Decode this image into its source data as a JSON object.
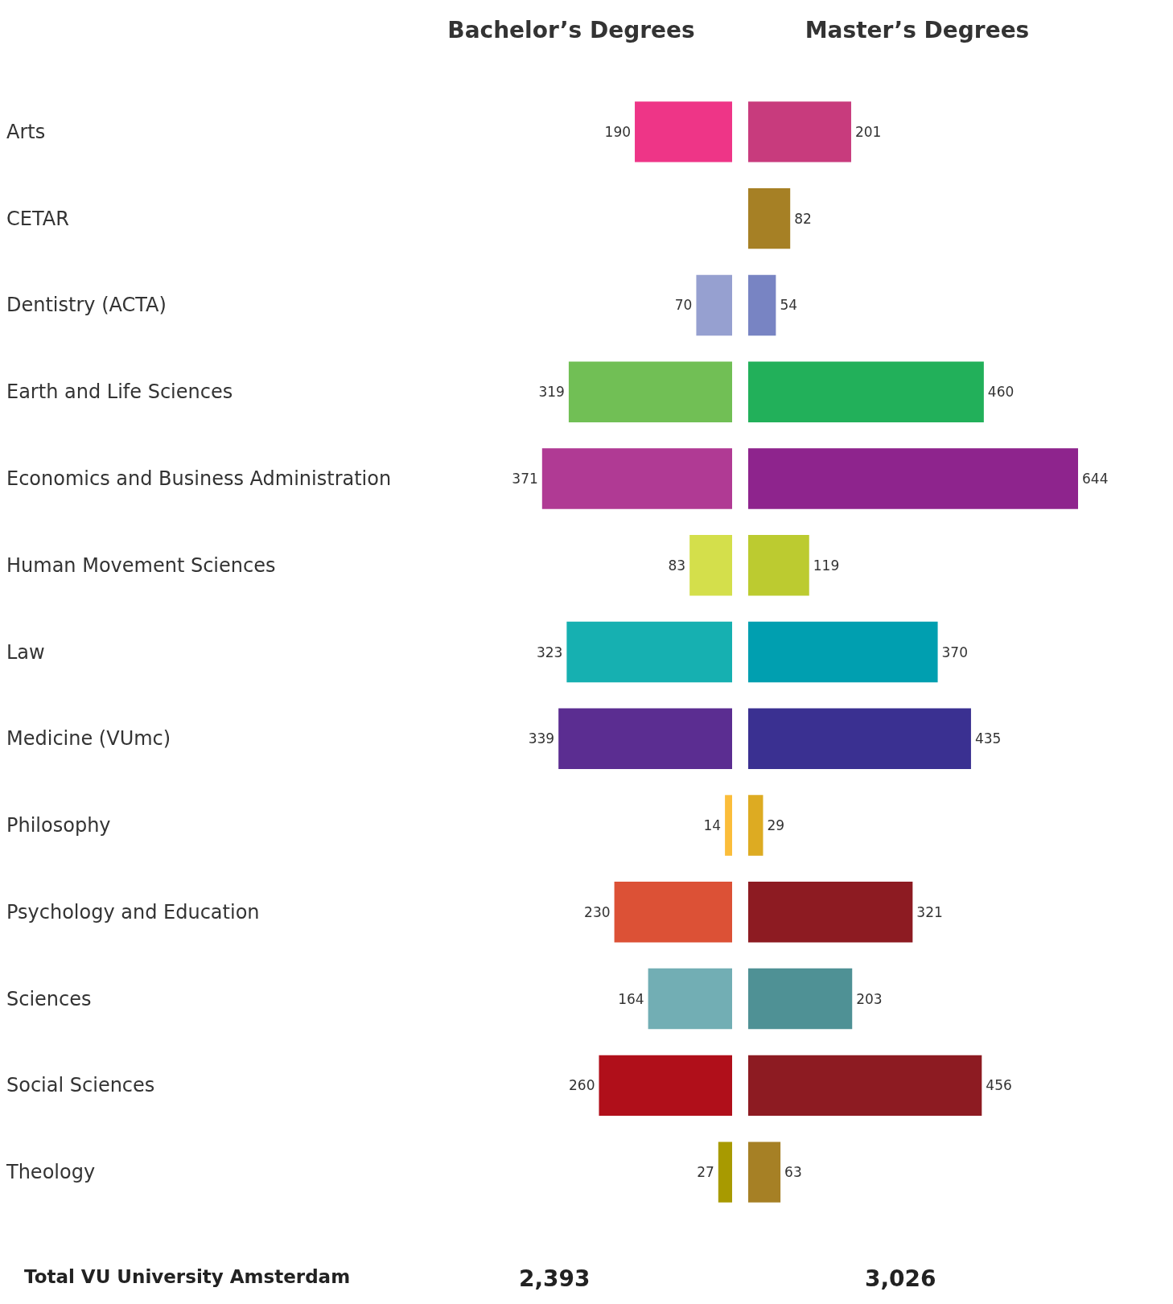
{
  "chart_data": [
    {
      "type": "bar",
      "orientation": "horizontal",
      "title": "Bachelor’s Degrees",
      "categories": [
        "Arts",
        "CETAR",
        "Dentistry (ACTA)",
        "Earth and Life Sciences",
        "Economics and Business Administration",
        "Human Movement Sciences",
        "Law",
        "Medicine (VUmc)",
        "Philosophy",
        "Psychology and Education",
        "Sciences",
        "Social Sciences",
        "Theology"
      ],
      "colors": [
        "#ee3587",
        "#a68025",
        "#96a0d0",
        "#71bf55",
        "#b03a94",
        "#d4df4b",
        "#16b0b1",
        "#5b2d91",
        "#fbbd3a",
        "#dc5136",
        "#72aeb4",
        "#b00f1a",
        "#a89a00"
      ],
      "values": [
        190,
        null,
        70,
        319,
        371,
        83,
        323,
        339,
        14,
        230,
        164,
        260,
        27
      ],
      "data_labels": true,
      "tick_labels": "y",
      "annotations": [
        "Total VU University Amsterdam",
        "2,393"
      ]
    },
    {
      "type": "bar",
      "orientation": "horizontal",
      "title": "Master’s Degrees",
      "categories": [
        null,
        null,
        null,
        null,
        null,
        null,
        null,
        null,
        null,
        null,
        null,
        null,
        null
      ],
      "colors": [
        "#c83b7d",
        "#a68025",
        "#7884c3",
        "#22b05a",
        "#8e248d",
        "#bccb30",
        "#009fb0",
        "#3a3091",
        "#ddab22",
        "#8d1b22",
        "#4f9195",
        "#8d1b22",
        "#a68025"
      ],
      "values": [
        201,
        82,
        54,
        460,
        644,
        119,
        370,
        435,
        29,
        321,
        203,
        456,
        63
      ],
      "data_labels": true,
      "tick_labels": false,
      "annotations": [
        "3,026"
      ]
    }
  ]
}
